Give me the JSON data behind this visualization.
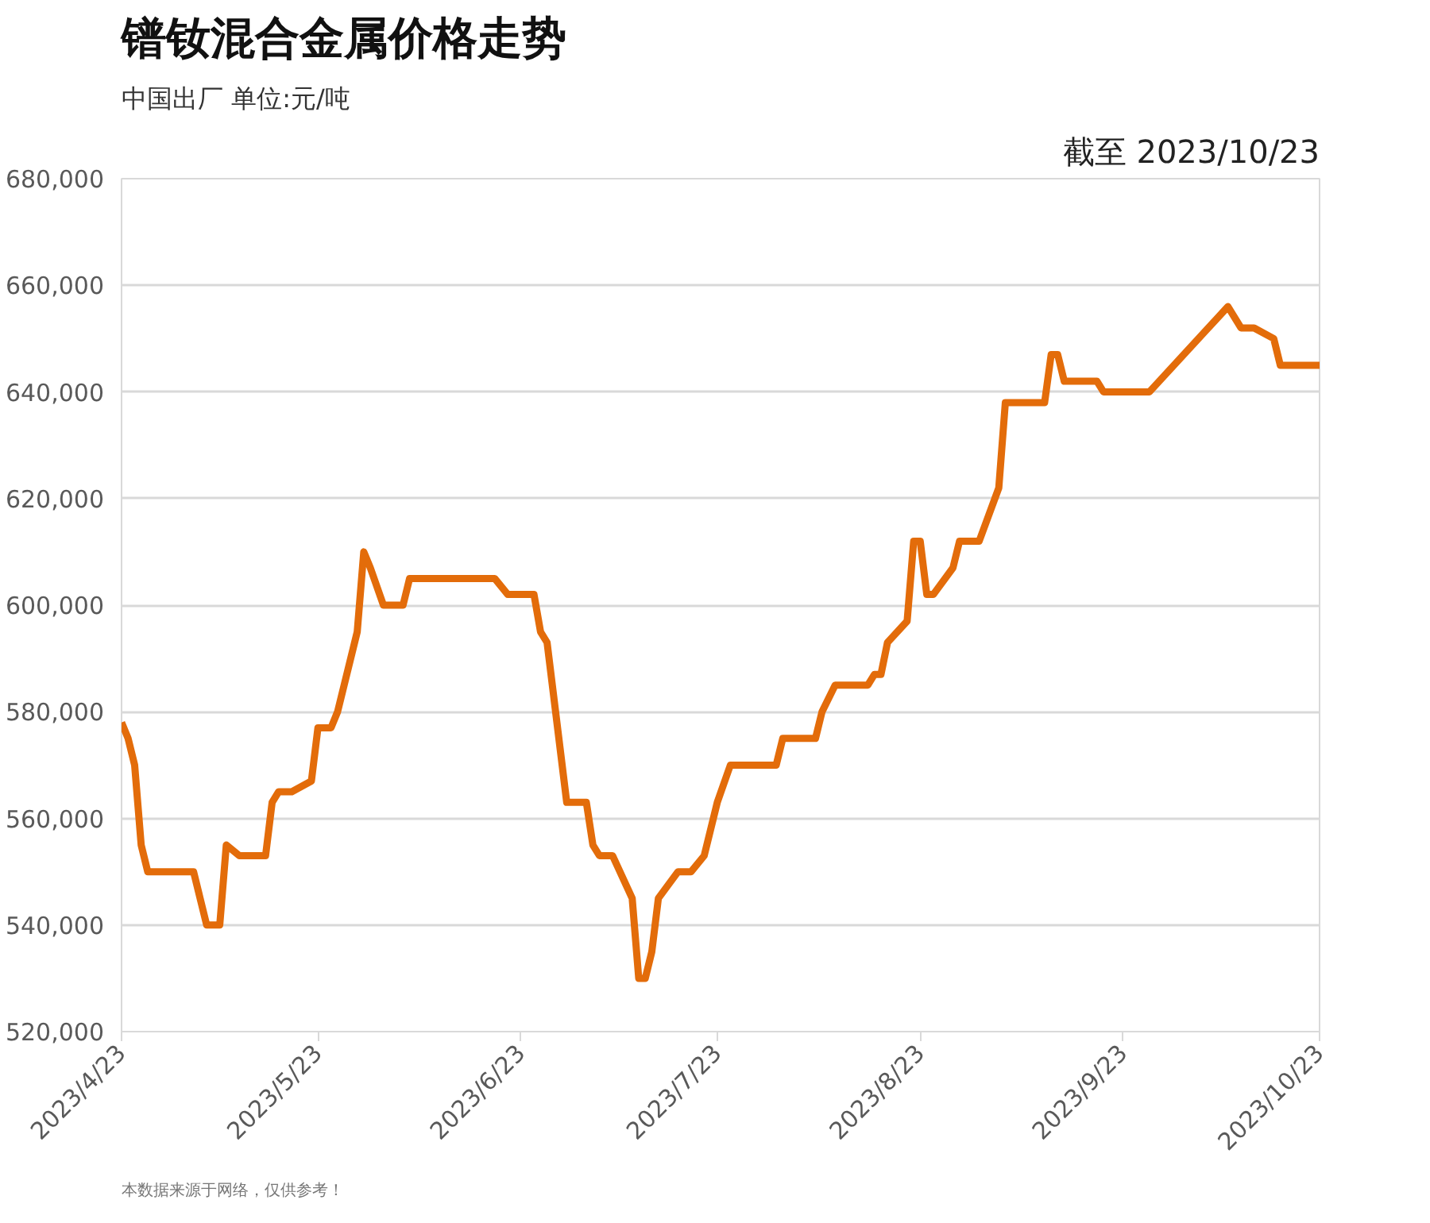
{
  "chart_data": {
    "type": "line",
    "title": "镨钕混合金属价格走势",
    "subtitle": "中国出厂  单位:元/吨",
    "annotations": [
      "截至 2023/10/23",
      "本数据来源于网络，仅供参考！"
    ],
    "x": [
      "2023-04-23",
      "2023-04-24",
      "2023-04-25",
      "2023-04-26",
      "2023-04-27",
      "2023-05-04",
      "2023-05-06",
      "2023-05-08",
      "2023-05-09",
      "2023-05-11",
      "2023-05-15",
      "2023-05-16",
      "2023-05-17",
      "2023-05-19",
      "2023-05-22",
      "2023-05-23",
      "2023-05-25",
      "2023-05-26",
      "2023-05-29",
      "2023-05-30",
      "2023-05-31",
      "2023-06-02",
      "2023-06-05",
      "2023-06-06",
      "2023-06-19",
      "2023-06-21",
      "2023-06-25",
      "2023-06-26",
      "2023-06-27",
      "2023-06-30",
      "2023-07-03",
      "2023-07-04",
      "2023-07-05",
      "2023-07-07",
      "2023-07-10",
      "2023-07-11",
      "2023-07-12",
      "2023-07-13",
      "2023-07-14",
      "2023-07-17",
      "2023-07-19",
      "2023-07-21",
      "2023-07-23",
      "2023-07-25",
      "2023-08-01",
      "2023-08-02",
      "2023-08-07",
      "2023-08-08",
      "2023-08-10",
      "2023-08-15",
      "2023-08-16",
      "2023-08-17",
      "2023-08-18",
      "2023-08-21",
      "2023-08-22",
      "2023-08-23",
      "2023-08-24",
      "2023-08-25",
      "2023-08-28",
      "2023-08-29",
      "2023-09-01",
      "2023-09-04",
      "2023-09-05",
      "2023-09-11",
      "2023-09-12",
      "2023-09-13",
      "2023-09-14",
      "2023-09-19",
      "2023-09-20",
      "2023-09-27",
      "2023-10-09",
      "2023-10-11",
      "2023-10-13",
      "2023-10-16",
      "2023-10-17",
      "2023-10-23"
    ],
    "series": [
      {
        "color": "#e36c0a",
        "values": [
          578000,
          575000,
          570000,
          555000,
          550000,
          550000,
          540000,
          540000,
          555000,
          553000,
          553000,
          563000,
          565000,
          565000,
          567000,
          577000,
          577000,
          580000,
          595000,
          610000,
          607000,
          600000,
          600000,
          605000,
          605000,
          602000,
          602000,
          595000,
          593000,
          563000,
          563000,
          555000,
          553000,
          553000,
          545000,
          530000,
          530000,
          535000,
          545000,
          550000,
          550000,
          553000,
          563000,
          570000,
          570000,
          575000,
          575000,
          580000,
          585000,
          585000,
          587000,
          587000,
          593000,
          597000,
          612000,
          612000,
          602000,
          602000,
          607000,
          612000,
          612000,
          622000,
          638000,
          638000,
          647000,
          647000,
          642000,
          642000,
          640000,
          640000,
          656000,
          652000,
          652000,
          650000,
          645000,
          645000
        ]
      }
    ],
    "xlim": [
      "2023-04-23",
      "2023-10-23"
    ],
    "xticks": [
      {
        "value": "2023-04-23",
        "label": "2023/4/23"
      },
      {
        "value": "2023-05-23",
        "label": "2023/5/23"
      },
      {
        "value": "2023-06-23",
        "label": "2023/6/23"
      },
      {
        "value": "2023-07-23",
        "label": "2023/7/23"
      },
      {
        "value": "2023-08-23",
        "label": "2023/8/23"
      },
      {
        "value": "2023-09-23",
        "label": "2023/9/23"
      },
      {
        "value": "2023-10-23",
        "label": "2023/10/23"
      }
    ],
    "ylim": [
      520000,
      680000
    ],
    "yticks": [
      {
        "value": 520000,
        "label": "520,000"
      },
      {
        "value": 540000,
        "label": "540,000"
      },
      {
        "value": 560000,
        "label": "560,000"
      },
      {
        "value": 580000,
        "label": "580,000"
      },
      {
        "value": 600000,
        "label": "600,000"
      },
      {
        "value": 620000,
        "label": "620,000"
      },
      {
        "value": 640000,
        "label": "640,000"
      },
      {
        "value": 660000,
        "label": "660,000"
      },
      {
        "value": 680000,
        "label": "680,000"
      }
    ],
    "grid": "y",
    "marker": "none",
    "line_style": "solid"
  }
}
